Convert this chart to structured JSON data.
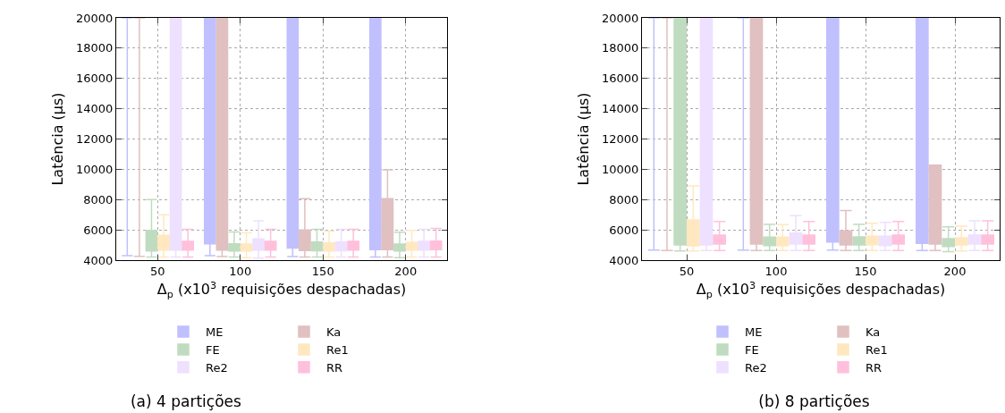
{
  "chart_data": [
    {
      "type": "box",
      "title": "(a) 4 partições",
      "xlabel": "Δ$_{p}$ (x10$^{3}$ requisições despachadas)",
      "ylabel": "Latência (µs)",
      "categories": [
        "50",
        "100",
        "150",
        "200"
      ],
      "ylim": [
        4000,
        20000
      ],
      "yticks": [
        4000,
        6000,
        8000,
        10000,
        12000,
        14000,
        16000,
        18000,
        20000
      ],
      "grid": true,
      "legend": "bottom",
      "series": [
        {
          "name": "ME",
          "color": "#c0c0ff",
          "boxes": [
            {
              "low": 4300,
              "q1": 20000,
              "median": 20000,
              "q3": 20000,
              "high": 20000
            },
            {
              "low": 4300,
              "q1": 5080,
              "median": 20000,
              "q3": 20000,
              "high": 20000
            },
            {
              "low": 4240,
              "q1": 4800,
              "median": 5480,
              "q3": 20000,
              "high": 20000
            },
            {
              "low": 4200,
              "q1": 4700,
              "median": 5140,
              "q3": 20000,
              "high": 20000
            }
          ]
        },
        {
          "name": "Ka",
          "color": "#e0c0c0",
          "boxes": [
            {
              "low": 4250,
              "q1": 20000,
              "median": 20000,
              "q3": 20000,
              "high": 20000
            },
            {
              "low": 4240,
              "q1": 4660,
              "median": 4940,
              "q3": 20000,
              "high": 20000
            },
            {
              "low": 4200,
              "q1": 4640,
              "median": 4920,
              "q3": 6000,
              "high": 8060
            },
            {
              "low": 4200,
              "q1": 4700,
              "median": 5040,
              "q3": 8060,
              "high": 9960
            }
          ]
        },
        {
          "name": "FE",
          "color": "#c0dcc0",
          "boxes": [
            {
              "low": 4200,
              "q1": 4600,
              "median": 4860,
              "q3": 5960,
              "high": 8000
            },
            {
              "low": 4200,
              "q1": 4600,
              "median": 4840,
              "q3": 5080,
              "high": 5860
            },
            {
              "low": 4200,
              "q1": 4620,
              "median": 4900,
              "q3": 5200,
              "high": 6040
            },
            {
              "low": 4160,
              "q1": 4600,
              "median": 4820,
              "q3": 5060,
              "high": 5840
            }
          ]
        },
        {
          "name": "Re1",
          "color": "#ffe8c0",
          "boxes": [
            {
              "low": 4200,
              "q1": 4660,
              "median": 4900,
              "q3": 5640,
              "high": 7000
            },
            {
              "low": 4160,
              "q1": 4600,
              "median": 4800,
              "q3": 5060,
              "high": 5800
            },
            {
              "low": 4200,
              "q1": 4600,
              "median": 4840,
              "q3": 5140,
              "high": 5920
            },
            {
              "low": 4200,
              "q1": 4660,
              "median": 4900,
              "q3": 5160,
              "high": 5960
            }
          ]
        },
        {
          "name": "Re2",
          "color": "#eee0ff",
          "boxes": [
            {
              "low": 4200,
              "q1": 4660,
              "median": 4940,
              "q3": 20000,
              "high": 20000
            },
            {
              "low": 4140,
              "q1": 4660,
              "median": 4900,
              "q3": 5400,
              "high": 6600
            },
            {
              "low": 4200,
              "q1": 4620,
              "median": 4860,
              "q3": 5200,
              "high": 6040
            },
            {
              "low": 4200,
              "q1": 4660,
              "median": 4900,
              "q3": 5240,
              "high": 6040
            }
          ]
        },
        {
          "name": "RR",
          "color": "#ffc0dc",
          "boxes": [
            {
              "low": 4200,
              "q1": 4660,
              "median": 4940,
              "q3": 5240,
              "high": 6040
            },
            {
              "low": 4200,
              "q1": 4660,
              "median": 4940,
              "q3": 5240,
              "high": 6040
            },
            {
              "low": 4200,
              "q1": 4660,
              "median": 4940,
              "q3": 5240,
              "high": 6040
            },
            {
              "low": 4200,
              "q1": 4700,
              "median": 4960,
              "q3": 5260,
              "high": 6100
            }
          ]
        }
      ]
    },
    {
      "type": "box",
      "title": "(b) 8 partições",
      "xlabel": "Δ$_{p}$ (x10$^{3}$ requisições despachadas)",
      "ylabel": "Latência (µs)",
      "categories": [
        "50",
        "100",
        "150",
        "200"
      ],
      "ylim": [
        4000,
        20000
      ],
      "yticks": [
        4000,
        6000,
        8000,
        10000,
        12000,
        14000,
        16000,
        18000,
        20000
      ],
      "grid": true,
      "legend": "bottom",
      "series": [
        {
          "name": "ME",
          "color": "#c0c0ff",
          "boxes": [
            {
              "low": 4660,
              "q1": 20000,
              "median": 20000,
              "q3": 20000,
              "high": 20000
            },
            {
              "low": 4660,
              "q1": 20000,
              "median": 20000,
              "q3": 20000,
              "high": 20000
            },
            {
              "low": 4660,
              "q1": 5200,
              "median": 6440,
              "q3": 20000,
              "high": 20000
            },
            {
              "low": 4640,
              "q1": 5100,
              "median": 5540,
              "q3": 20000,
              "high": 20000
            }
          ]
        },
        {
          "name": "Ka",
          "color": "#e0c0c0",
          "boxes": [
            {
              "low": 4640,
              "q1": 20000,
              "median": 20000,
              "q3": 20000,
              "high": 20000
            },
            {
              "low": 4640,
              "q1": 5060,
              "median": 5660,
              "q3": 20000,
              "high": 20000
            },
            {
              "low": 4640,
              "q1": 5000,
              "median": 5240,
              "q3": 5940,
              "high": 7280
            },
            {
              "low": 4640,
              "q1": 5060,
              "median": 5400,
              "q3": 10280,
              "high": 10280
            }
          ]
        },
        {
          "name": "FE",
          "color": "#c0dcc0",
          "boxes": [
            {
              "low": 4600,
              "q1": 5000,
              "median": 5280,
              "q3": 20000,
              "high": 20000
            },
            {
              "low": 4640,
              "q1": 4960,
              "median": 5200,
              "q3": 5520,
              "high": 6360
            },
            {
              "low": 4640,
              "q1": 5000,
              "median": 5240,
              "q3": 5540,
              "high": 6360
            },
            {
              "low": 4560,
              "q1": 4900,
              "median": 5160,
              "q3": 5420,
              "high": 6200
            }
          ]
        },
        {
          "name": "Re1",
          "color": "#ffe8c0",
          "boxes": [
            {
              "low": 4600,
              "q1": 4940,
              "median": 5180,
              "q3": 6660,
              "high": 8900
            },
            {
              "low": 4640,
              "q1": 4960,
              "median": 5200,
              "q3": 5520,
              "high": 6340
            },
            {
              "low": 4640,
              "q1": 5020,
              "median": 5260,
              "q3": 5580,
              "high": 6440
            },
            {
              "low": 4600,
              "q1": 5000,
              "median": 5200,
              "q3": 5480,
              "high": 6240
            }
          ]
        },
        {
          "name": "Re2",
          "color": "#eee0ff",
          "boxes": [
            {
              "low": 4640,
              "q1": 5000,
              "median": 5400,
              "q3": 20000,
              "high": 20000
            },
            {
              "low": 4640,
              "q1": 5060,
              "median": 5300,
              "q3": 5780,
              "high": 6940
            },
            {
              "low": 4640,
              "q1": 4960,
              "median": 5200,
              "q3": 5580,
              "high": 6500
            },
            {
              "low": 4640,
              "q1": 5060,
              "median": 5340,
              "q3": 5660,
              "high": 6600
            }
          ]
        },
        {
          "name": "RR",
          "color": "#ffc0dc",
          "boxes": [
            {
              "low": 4640,
              "q1": 5060,
              "median": 5360,
              "q3": 5660,
              "high": 6560
            },
            {
              "low": 4640,
              "q1": 5060,
              "median": 5360,
              "q3": 5660,
              "high": 6560
            },
            {
              "low": 4640,
              "q1": 5060,
              "median": 5360,
              "q3": 5660,
              "high": 6560
            },
            {
              "low": 4640,
              "q1": 5060,
              "median": 5360,
              "q3": 5660,
              "high": 6600
            }
          ]
        }
      ]
    }
  ]
}
